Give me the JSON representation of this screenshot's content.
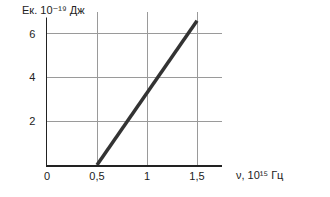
{
  "chart_data": {
    "type": "line",
    "y_label": "Eк. 10⁻¹⁹ Дж",
    "x_label": "ν, 10¹⁵ Гц",
    "x": [
      0.5,
      1.5
    ],
    "values": [
      0,
      6.6
    ],
    "color": "#333333",
    "xlim": [
      0,
      1.75
    ],
    "ylim": [
      0,
      7
    ],
    "xticks": [
      0,
      {
        "value": 0.5,
        "label": "0,5"
      },
      1,
      {
        "value": 1.5,
        "label": "1,5"
      }
    ],
    "yticks": [
      2,
      4,
      6
    ],
    "grid": true
  }
}
